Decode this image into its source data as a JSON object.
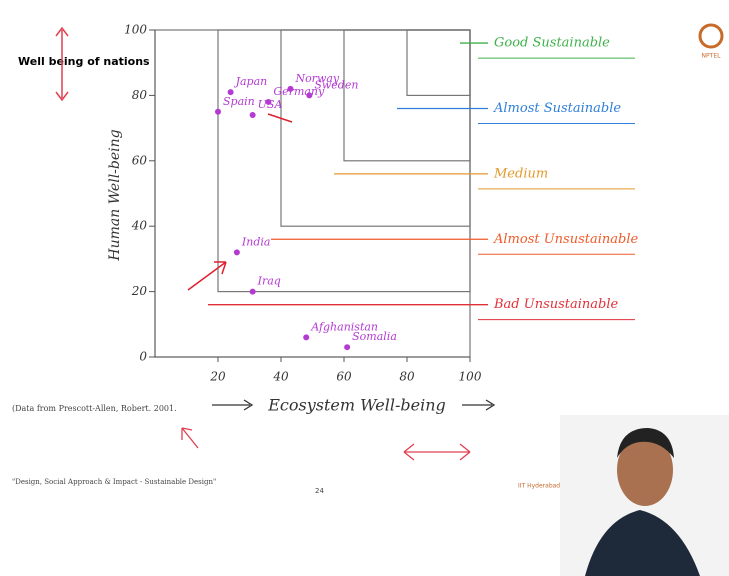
{
  "slide": {
    "title": "Well being of nations",
    "source": "(Data from Prescott-Allen, Robert. 2001.",
    "footer": "\"Design, Social Approach & Impact - Sustainable Design\"",
    "page": "24",
    "credit": "IIT Hyderabad, India",
    "logo": "NPTEL"
  },
  "chart_data": {
    "type": "scatter",
    "x_label": "Ecosystem Well-being",
    "y_label": "Human Well-being",
    "xlim": [
      0,
      100
    ],
    "ylim": [
      0,
      100
    ],
    "xticks": [
      20,
      40,
      60,
      80,
      100
    ],
    "yticks": [
      0,
      20,
      40,
      60,
      80,
      100
    ],
    "series": [
      {
        "color": "#b43ad2",
        "labels": [
          "Japan",
          "Norway",
          "Sweden",
          "USA",
          "Germany",
          "Spain",
          "India",
          "Iraq",
          "Afghanistan",
          "Somalia"
        ],
        "x": [
          24,
          43,
          49,
          31,
          36,
          20,
          26,
          31,
          48,
          61
        ],
        "values": [
          81,
          82,
          80,
          74,
          78,
          75,
          32,
          20,
          6,
          3
        ]
      }
    ],
    "zones": [
      {
        "label": "Bad Unsustainable",
        "color": "#e0303a",
        "min": 0
      },
      {
        "label": "Almost Unsustainable",
        "color": "#ef5a2a",
        "min": 20
      },
      {
        "label": "Medium",
        "color": "#e39a2c",
        "min": 40
      },
      {
        "label": "Almost Sustainable",
        "color": "#2f7fd8",
        "min": 60
      },
      {
        "label": "Good Sustainable",
        "color": "#3fb14a",
        "min": 80
      }
    ]
  }
}
